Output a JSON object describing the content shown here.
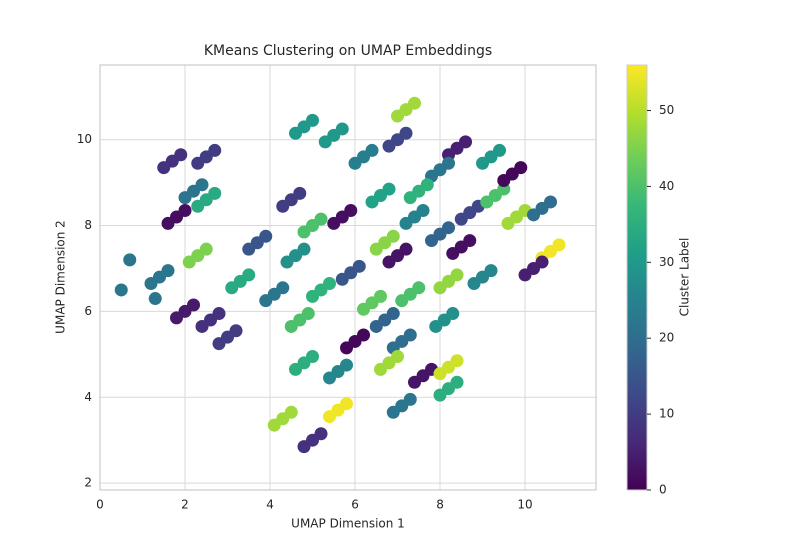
{
  "chart_data": {
    "type": "scatter",
    "title": "KMeans Clustering on UMAP Embeddings",
    "x_label": "UMAP Dimension 1",
    "y_label": "UMAP Dimension 2",
    "colorbar_label": "Cluster Label",
    "colormap": "viridis",
    "grid": true,
    "xlim": [
      0,
      11.67
    ],
    "ylim": [
      1.84,
      11.74
    ],
    "xticks": [
      0,
      2,
      4,
      6,
      8,
      10
    ],
    "yticks": [
      2,
      4,
      6,
      8,
      10
    ],
    "clim": [
      0,
      56
    ],
    "cticks": [
      0,
      10,
      20,
      30,
      40,
      50
    ],
    "x": [
      1.8,
      2.0,
      1.6,
      2.2,
      2.4,
      2.0,
      2.5,
      2.7,
      2.3,
      2.3,
      2.5,
      2.1,
      3.3,
      3.5,
      3.1,
      3.7,
      3.9,
      3.5,
      1.4,
      1.6,
      1.2,
      4.1,
      4.3,
      3.9,
      3.0,
      3.2,
      2.8,
      2.6,
      2.8,
      2.4,
      2.5,
      2.7,
      2.3,
      1.7,
      1.9,
      1.5,
      4.7,
      4.9,
      4.5,
      4.6,
      4.8,
      4.4,
      5.0,
      5.2,
      4.8,
      5.7,
      5.9,
      5.5,
      4.5,
      4.7,
      4.3,
      5.9,
      6.1,
      5.7,
      6.0,
      6.2,
      5.8,
      6.7,
      6.9,
      6.5,
      6.4,
      6.6,
      6.2,
      7.3,
      7.5,
      7.1,
      7.0,
      7.2,
      6.8,
      6.7,
      6.9,
      6.5,
      7.4,
      7.6,
      7.2,
      8.0,
      8.2,
      7.8,
      8.2,
      8.4,
      8.0,
      8.5,
      8.7,
      8.3,
      8.7,
      8.9,
      8.5,
      9.3,
      9.5,
      9.1,
      9.8,
      10.0,
      9.6,
      9.7,
      9.9,
      9.5,
      9.2,
      9.4,
      9.0,
      8.4,
      8.6,
      8.2,
      8.0,
      8.2,
      7.8,
      7.5,
      7.7,
      7.3,
      6.6,
      6.8,
      6.4,
      6.2,
      6.4,
      6.0,
      7.0,
      7.2,
      6.8,
      7.2,
      7.4,
      7.0,
      5.5,
      5.7,
      5.3,
      4.8,
      5.0,
      4.6,
      10.6,
      10.8,
      10.4,
      10.2,
      10.4,
      10.0,
      9.0,
      9.2,
      8.8,
      8.1,
      8.3,
      7.9,
      7.1,
      7.3,
      6.9,
      6.8,
      7.0,
      6.6,
      7.6,
      7.8,
      7.4,
      8.2,
      8.4,
      8.0,
      8.2,
      8.4,
      8.0,
      7.1,
      7.3,
      6.9,
      5.6,
      5.8,
      5.4,
      5.0,
      5.2,
      4.8,
      4.8,
      5.0,
      4.6,
      5.6,
      5.8,
      5.4,
      5.2,
      5.4,
      5.0,
      4.3,
      4.5,
      4.1,
      2.0,
      2.2,
      1.8,
      0.5,
      0.7,
      1.3,
      10.4,
      10.6,
      10.2
    ],
    "y": [
      8.2,
      8.35,
      8.05,
      8.8,
      8.95,
      8.65,
      8.6,
      8.75,
      8.45,
      7.3,
      7.45,
      7.15,
      6.7,
      6.85,
      6.55,
      7.6,
      7.75,
      7.45,
      6.8,
      6.95,
      6.65,
      6.4,
      6.55,
      6.25,
      5.4,
      5.55,
      5.25,
      5.8,
      5.95,
      5.65,
      9.6,
      9.75,
      9.45,
      9.5,
      9.65,
      9.35,
      5.8,
      5.95,
      5.65,
      7.3,
      7.45,
      7.15,
      8.0,
      8.15,
      7.85,
      8.2,
      8.35,
      8.05,
      8.6,
      8.75,
      8.45,
      6.9,
      7.05,
      6.75,
      5.3,
      5.45,
      5.15,
      5.8,
      5.95,
      5.65,
      6.2,
      6.35,
      6.05,
      6.4,
      6.55,
      6.25,
      7.3,
      7.45,
      7.15,
      7.6,
      7.75,
      7.45,
      8.2,
      8.35,
      8.05,
      7.8,
      7.95,
      7.65,
      6.7,
      6.85,
      6.55,
      7.5,
      7.65,
      7.35,
      8.3,
      8.45,
      8.15,
      8.7,
      8.85,
      8.55,
      8.2,
      8.35,
      8.05,
      9.2,
      9.35,
      9.05,
      9.6,
      9.75,
      9.45,
      9.8,
      9.95,
      9.65,
      9.3,
      9.45,
      9.15,
      8.8,
      8.95,
      8.65,
      8.7,
      8.85,
      8.55,
      9.6,
      9.75,
      9.45,
      10.0,
      10.15,
      9.85,
      10.7,
      10.85,
      10.55,
      10.1,
      10.25,
      9.95,
      10.3,
      10.45,
      10.15,
      7.4,
      7.55,
      7.25,
      7.0,
      7.15,
      6.85,
      6.8,
      6.95,
      6.65,
      5.8,
      5.95,
      5.65,
      5.3,
      5.45,
      5.15,
      4.8,
      4.95,
      4.65,
      4.5,
      4.65,
      4.35,
      4.7,
      4.85,
      4.55,
      4.2,
      4.35,
      4.05,
      3.8,
      3.95,
      3.65,
      3.7,
      3.85,
      3.55,
      3.0,
      3.15,
      2.85,
      4.8,
      4.95,
      4.65,
      4.6,
      4.75,
      4.45,
      6.5,
      6.65,
      6.35,
      3.5,
      3.65,
      3.35,
      6.0,
      6.15,
      5.85,
      6.5,
      7.2,
      6.3,
      8.4,
      8.55,
      8.25
    ],
    "c": [
      2,
      2,
      2,
      22,
      22,
      22,
      34,
      34,
      34,
      45,
      45,
      45,
      34,
      34,
      34,
      15,
      15,
      15,
      22,
      22,
      22,
      22,
      22,
      22,
      10,
      10,
      10,
      8,
      8,
      8,
      10,
      10,
      10,
      8,
      8,
      8,
      40,
      40,
      40,
      28,
      28,
      28,
      40,
      40,
      40,
      2,
      2,
      2,
      10,
      10,
      10,
      15,
      15,
      15,
      1,
      1,
      1,
      18,
      18,
      18,
      42,
      42,
      42,
      40,
      40,
      40,
      3,
      3,
      3,
      46,
      46,
      46,
      25,
      25,
      25,
      18,
      18,
      18,
      47,
      47,
      47,
      2,
      2,
      2,
      12,
      12,
      12,
      40,
      40,
      40,
      48,
      48,
      48,
      1,
      1,
      1,
      30,
      30,
      30,
      5,
      5,
      5,
      22,
      22,
      22,
      36,
      36,
      36,
      32,
      32,
      32,
      24,
      24,
      24,
      12,
      12,
      12,
      48,
      48,
      48,
      30,
      30,
      30,
      30,
      30,
      30,
      55,
      55,
      55,
      5,
      5,
      5,
      26,
      26,
      26,
      28,
      28,
      28,
      20,
      20,
      20,
      48,
      48,
      48,
      3,
      3,
      3,
      52,
      52,
      52,
      35,
      35,
      35,
      22,
      22,
      22,
      55,
      55,
      55,
      8,
      8,
      8,
      35,
      35,
      35,
      26,
      26,
      26,
      36,
      36,
      36,
      48,
      48,
      48,
      4,
      4,
      4,
      22,
      22,
      22,
      20,
      20,
      20
    ]
  }
}
